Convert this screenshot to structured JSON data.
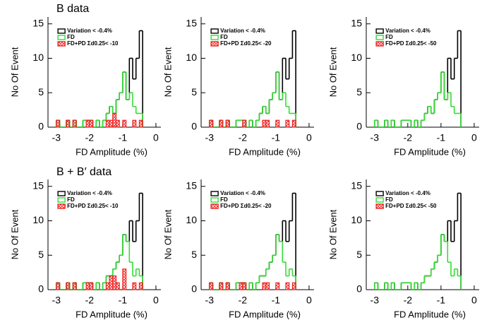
{
  "sections": [
    "B data",
    "B + B′ data"
  ],
  "chart_data": [
    {
      "type": "histogram",
      "xlabel": "FD Amplitude (%)",
      "ylabel": "No Of Event",
      "xlim": [
        -3.25,
        0.15
      ],
      "ylim": [
        0,
        16
      ],
      "xticks": [
        -3,
        -2,
        -1,
        0
      ],
      "yticks": [
        0,
        5,
        10,
        15
      ],
      "bins": [
        -3.0,
        -2.9,
        -2.8,
        -2.7,
        -2.6,
        -2.5,
        -2.4,
        -2.3,
        -2.2,
        -2.1,
        -2.0,
        -1.9,
        -1.8,
        -1.7,
        -1.6,
        -1.5,
        -1.4,
        -1.3,
        -1.2,
        -1.1,
        -1.0,
        -0.9,
        -0.8,
        -0.7,
        -0.6,
        -0.5,
        -0.4
      ],
      "series": [
        {
          "name": "Variation < -0.4%",
          "color": "#000000",
          "values": [
            1,
            0,
            0,
            1,
            0,
            1,
            0,
            0,
            1,
            1,
            1,
            0,
            1,
            0,
            1,
            2,
            3,
            2,
            4,
            5,
            8,
            4,
            10,
            7,
            10,
            14
          ]
        },
        {
          "name": "FD",
          "color": "#33dd33",
          "values": [
            1,
            0,
            0,
            1,
            0,
            1,
            0,
            0,
            1,
            1,
            1,
            0,
            1,
            0,
            1,
            2,
            3,
            2,
            4,
            5,
            8,
            4,
            5,
            3,
            2,
            2
          ]
        },
        {
          "name": "FD+PD Σd0.25< -10",
          "color": "#ee2222",
          "values": [
            1,
            0,
            0,
            1,
            0,
            1,
            0,
            0,
            0,
            1,
            1,
            0,
            0,
            0,
            0,
            1,
            1,
            2,
            1,
            0,
            1,
            0,
            0,
            1,
            0,
            1
          ]
        }
      ]
    },
    {
      "type": "histogram",
      "xlabel": "FD Amplitude (%)",
      "ylabel": "No Of Event",
      "xlim": [
        -3.25,
        0.15
      ],
      "ylim": [
        0,
        16
      ],
      "xticks": [
        -3,
        -2,
        -1,
        0
      ],
      "yticks": [
        0,
        5,
        10,
        15
      ],
      "bins": [
        -3.0,
        -2.9,
        -2.8,
        -2.7,
        -2.6,
        -2.5,
        -2.4,
        -2.3,
        -2.2,
        -2.1,
        -2.0,
        -1.9,
        -1.8,
        -1.7,
        -1.6,
        -1.5,
        -1.4,
        -1.3,
        -1.2,
        -1.1,
        -1.0,
        -0.9,
        -0.8,
        -0.7,
        -0.6,
        -0.5,
        -0.4
      ],
      "series": [
        {
          "name": "Variation < -0.4%",
          "color": "#000000",
          "values": [
            1,
            0,
            0,
            1,
            0,
            1,
            0,
            0,
            1,
            1,
            1,
            0,
            1,
            0,
            1,
            2,
            3,
            2,
            4,
            5,
            8,
            4,
            10,
            7,
            10,
            14
          ]
        },
        {
          "name": "FD",
          "color": "#33dd33",
          "values": [
            1,
            0,
            0,
            1,
            0,
            1,
            0,
            0,
            1,
            1,
            1,
            0,
            1,
            0,
            1,
            2,
            3,
            2,
            4,
            5,
            8,
            4,
            5,
            3,
            2,
            2
          ]
        },
        {
          "name": "FD+PD Σd0.25< -20",
          "color": "#ee2222",
          "values": [
            1,
            0,
            0,
            1,
            0,
            1,
            0,
            0,
            0,
            0,
            1,
            0,
            0,
            0,
            0,
            0,
            1,
            1,
            0,
            0,
            1,
            0,
            0,
            1,
            0,
            1
          ]
        }
      ]
    },
    {
      "type": "histogram",
      "xlabel": "FD Amplitude (%)",
      "ylabel": "No Of Event",
      "xlim": [
        -3.25,
        0.15
      ],
      "ylim": [
        0,
        16
      ],
      "xticks": [
        -3,
        -2,
        -1,
        0
      ],
      "yticks": [
        0,
        5,
        10,
        15
      ],
      "bins": [
        -3.0,
        -2.9,
        -2.8,
        -2.7,
        -2.6,
        -2.5,
        -2.4,
        -2.3,
        -2.2,
        -2.1,
        -2.0,
        -1.9,
        -1.8,
        -1.7,
        -1.6,
        -1.5,
        -1.4,
        -1.3,
        -1.2,
        -1.1,
        -1.0,
        -0.9,
        -0.8,
        -0.7,
        -0.6,
        -0.5,
        -0.4
      ],
      "series": [
        {
          "name": "Variation < -0.4%",
          "color": "#000000",
          "values": [
            1,
            0,
            0,
            1,
            0,
            1,
            0,
            0,
            1,
            1,
            1,
            0,
            1,
            0,
            1,
            2,
            3,
            2,
            4,
            5,
            8,
            4,
            10,
            7,
            10,
            14
          ]
        },
        {
          "name": "FD",
          "color": "#33dd33",
          "values": [
            1,
            0,
            0,
            1,
            0,
            1,
            0,
            0,
            1,
            1,
            1,
            0,
            1,
            0,
            1,
            2,
            3,
            2,
            4,
            5,
            8,
            4,
            5,
            3,
            2,
            2
          ]
        },
        {
          "name": "FD+PD Σd0.25< -50",
          "color": "#ee2222",
          "values": [
            0,
            0,
            0,
            0,
            0,
            0,
            0,
            0,
            0,
            0,
            0,
            0,
            0,
            0,
            0,
            0,
            0,
            0,
            0,
            0,
            0,
            0,
            0,
            0,
            0,
            0
          ]
        }
      ]
    },
    {
      "type": "histogram",
      "xlabel": "FD Amplitude (%)",
      "ylabel": "No Of Event",
      "xlim": [
        -3.25,
        0.15
      ],
      "ylim": [
        0,
        16
      ],
      "xticks": [
        -3,
        -2,
        -1,
        0
      ],
      "yticks": [
        0,
        5,
        10,
        15
      ],
      "bins": [
        -3.0,
        -2.9,
        -2.8,
        -2.7,
        -2.6,
        -2.5,
        -2.4,
        -2.3,
        -2.2,
        -2.1,
        -2.0,
        -1.9,
        -1.8,
        -1.7,
        -1.6,
        -1.5,
        -1.4,
        -1.3,
        -1.2,
        -1.1,
        -1.0,
        -0.9,
        -0.8,
        -0.7,
        -0.6,
        -0.5,
        -0.4
      ],
      "series": [
        {
          "name": "Variation < -0.4%",
          "color": "#000000",
          "values": [
            1,
            0,
            0,
            1,
            0,
            1,
            0,
            0,
            1,
            1,
            1,
            0,
            1,
            0,
            1,
            2,
            2,
            3,
            4,
            5,
            8,
            7,
            10,
            7,
            10,
            14
          ]
        },
        {
          "name": "FD",
          "color": "#33dd33",
          "values": [
            1,
            0,
            0,
            1,
            0,
            1,
            0,
            0,
            1,
            1,
            1,
            0,
            1,
            0,
            1,
            2,
            2,
            3,
            4,
            5,
            8,
            7,
            4,
            2,
            3,
            2
          ]
        },
        {
          "name": "FD+PD Σd0.25< -10",
          "color": "#ee2222",
          "values": [
            1,
            0,
            0,
            1,
            0,
            1,
            0,
            0,
            0,
            1,
            1,
            0,
            0,
            0,
            0,
            1,
            2,
            2,
            1,
            0,
            3,
            0,
            0,
            1,
            0,
            1
          ]
        }
      ]
    },
    {
      "type": "histogram",
      "xlabel": "FD Amplitude (%)",
      "ylabel": "No Of Event",
      "xlim": [
        -3.25,
        0.15
      ],
      "ylim": [
        0,
        16
      ],
      "xticks": [
        -3,
        -2,
        -1,
        0
      ],
      "yticks": [
        0,
        5,
        10,
        15
      ],
      "bins": [
        -3.0,
        -2.9,
        -2.8,
        -2.7,
        -2.6,
        -2.5,
        -2.4,
        -2.3,
        -2.2,
        -2.1,
        -2.0,
        -1.9,
        -1.8,
        -1.7,
        -1.6,
        -1.5,
        -1.4,
        -1.3,
        -1.2,
        -1.1,
        -1.0,
        -0.9,
        -0.8,
        -0.7,
        -0.6,
        -0.5,
        -0.4
      ],
      "series": [
        {
          "name": "Variation < -0.4%",
          "color": "#000000",
          "values": [
            1,
            0,
            0,
            1,
            0,
            1,
            0,
            0,
            1,
            1,
            1,
            0,
            1,
            0,
            1,
            2,
            2,
            3,
            4,
            5,
            8,
            7,
            10,
            7,
            10,
            14
          ]
        },
        {
          "name": "FD",
          "color": "#33dd33",
          "values": [
            1,
            0,
            0,
            1,
            0,
            1,
            0,
            0,
            1,
            1,
            1,
            0,
            1,
            0,
            1,
            2,
            2,
            3,
            4,
            5,
            8,
            7,
            4,
            2,
            3,
            2
          ]
        },
        {
          "name": "FD+PD Σd0.25< -20",
          "color": "#ee2222",
          "values": [
            1,
            0,
            0,
            1,
            0,
            1,
            0,
            0,
            0,
            1,
            1,
            0,
            0,
            0,
            0,
            0,
            1,
            1,
            0,
            0,
            1,
            0,
            0,
            1,
            0,
            1
          ]
        }
      ]
    },
    {
      "type": "histogram",
      "xlabel": "FD Amplitude (%)",
      "ylabel": "No Of Event",
      "xlim": [
        -3.25,
        0.15
      ],
      "ylim": [
        0,
        16
      ],
      "xticks": [
        -3,
        -2,
        -1,
        0
      ],
      "yticks": [
        0,
        5,
        10,
        15
      ],
      "bins": [
        -3.0,
        -2.9,
        -2.8,
        -2.7,
        -2.6,
        -2.5,
        -2.4,
        -2.3,
        -2.2,
        -2.1,
        -2.0,
        -1.9,
        -1.8,
        -1.7,
        -1.6,
        -1.5,
        -1.4,
        -1.3,
        -1.2,
        -1.1,
        -1.0,
        -0.9,
        -0.8,
        -0.7,
        -0.6,
        -0.5,
        -0.4
      ],
      "series": [
        {
          "name": "Variation < -0.4%",
          "color": "#000000",
          "values": [
            1,
            0,
            0,
            1,
            0,
            1,
            0,
            0,
            1,
            1,
            1,
            0,
            1,
            0,
            1,
            2,
            2,
            3,
            4,
            5,
            8,
            7,
            10,
            7,
            10,
            14
          ]
        },
        {
          "name": "FD",
          "color": "#33dd33",
          "values": [
            1,
            0,
            0,
            1,
            0,
            1,
            0,
            0,
            1,
            1,
            1,
            0,
            1,
            0,
            1,
            2,
            2,
            3,
            4,
            5,
            8,
            7,
            4,
            2,
            3,
            2
          ]
        },
        {
          "name": "FD+PD Σd0.25< -50",
          "color": "#ee2222",
          "values": [
            0,
            0,
            0,
            0,
            0,
            0,
            0,
            0,
            0,
            0,
            0,
            0,
            0,
            0,
            0,
            0,
            0,
            0,
            0,
            0,
            0,
            0,
            0,
            0,
            0,
            0
          ]
        }
      ]
    }
  ]
}
